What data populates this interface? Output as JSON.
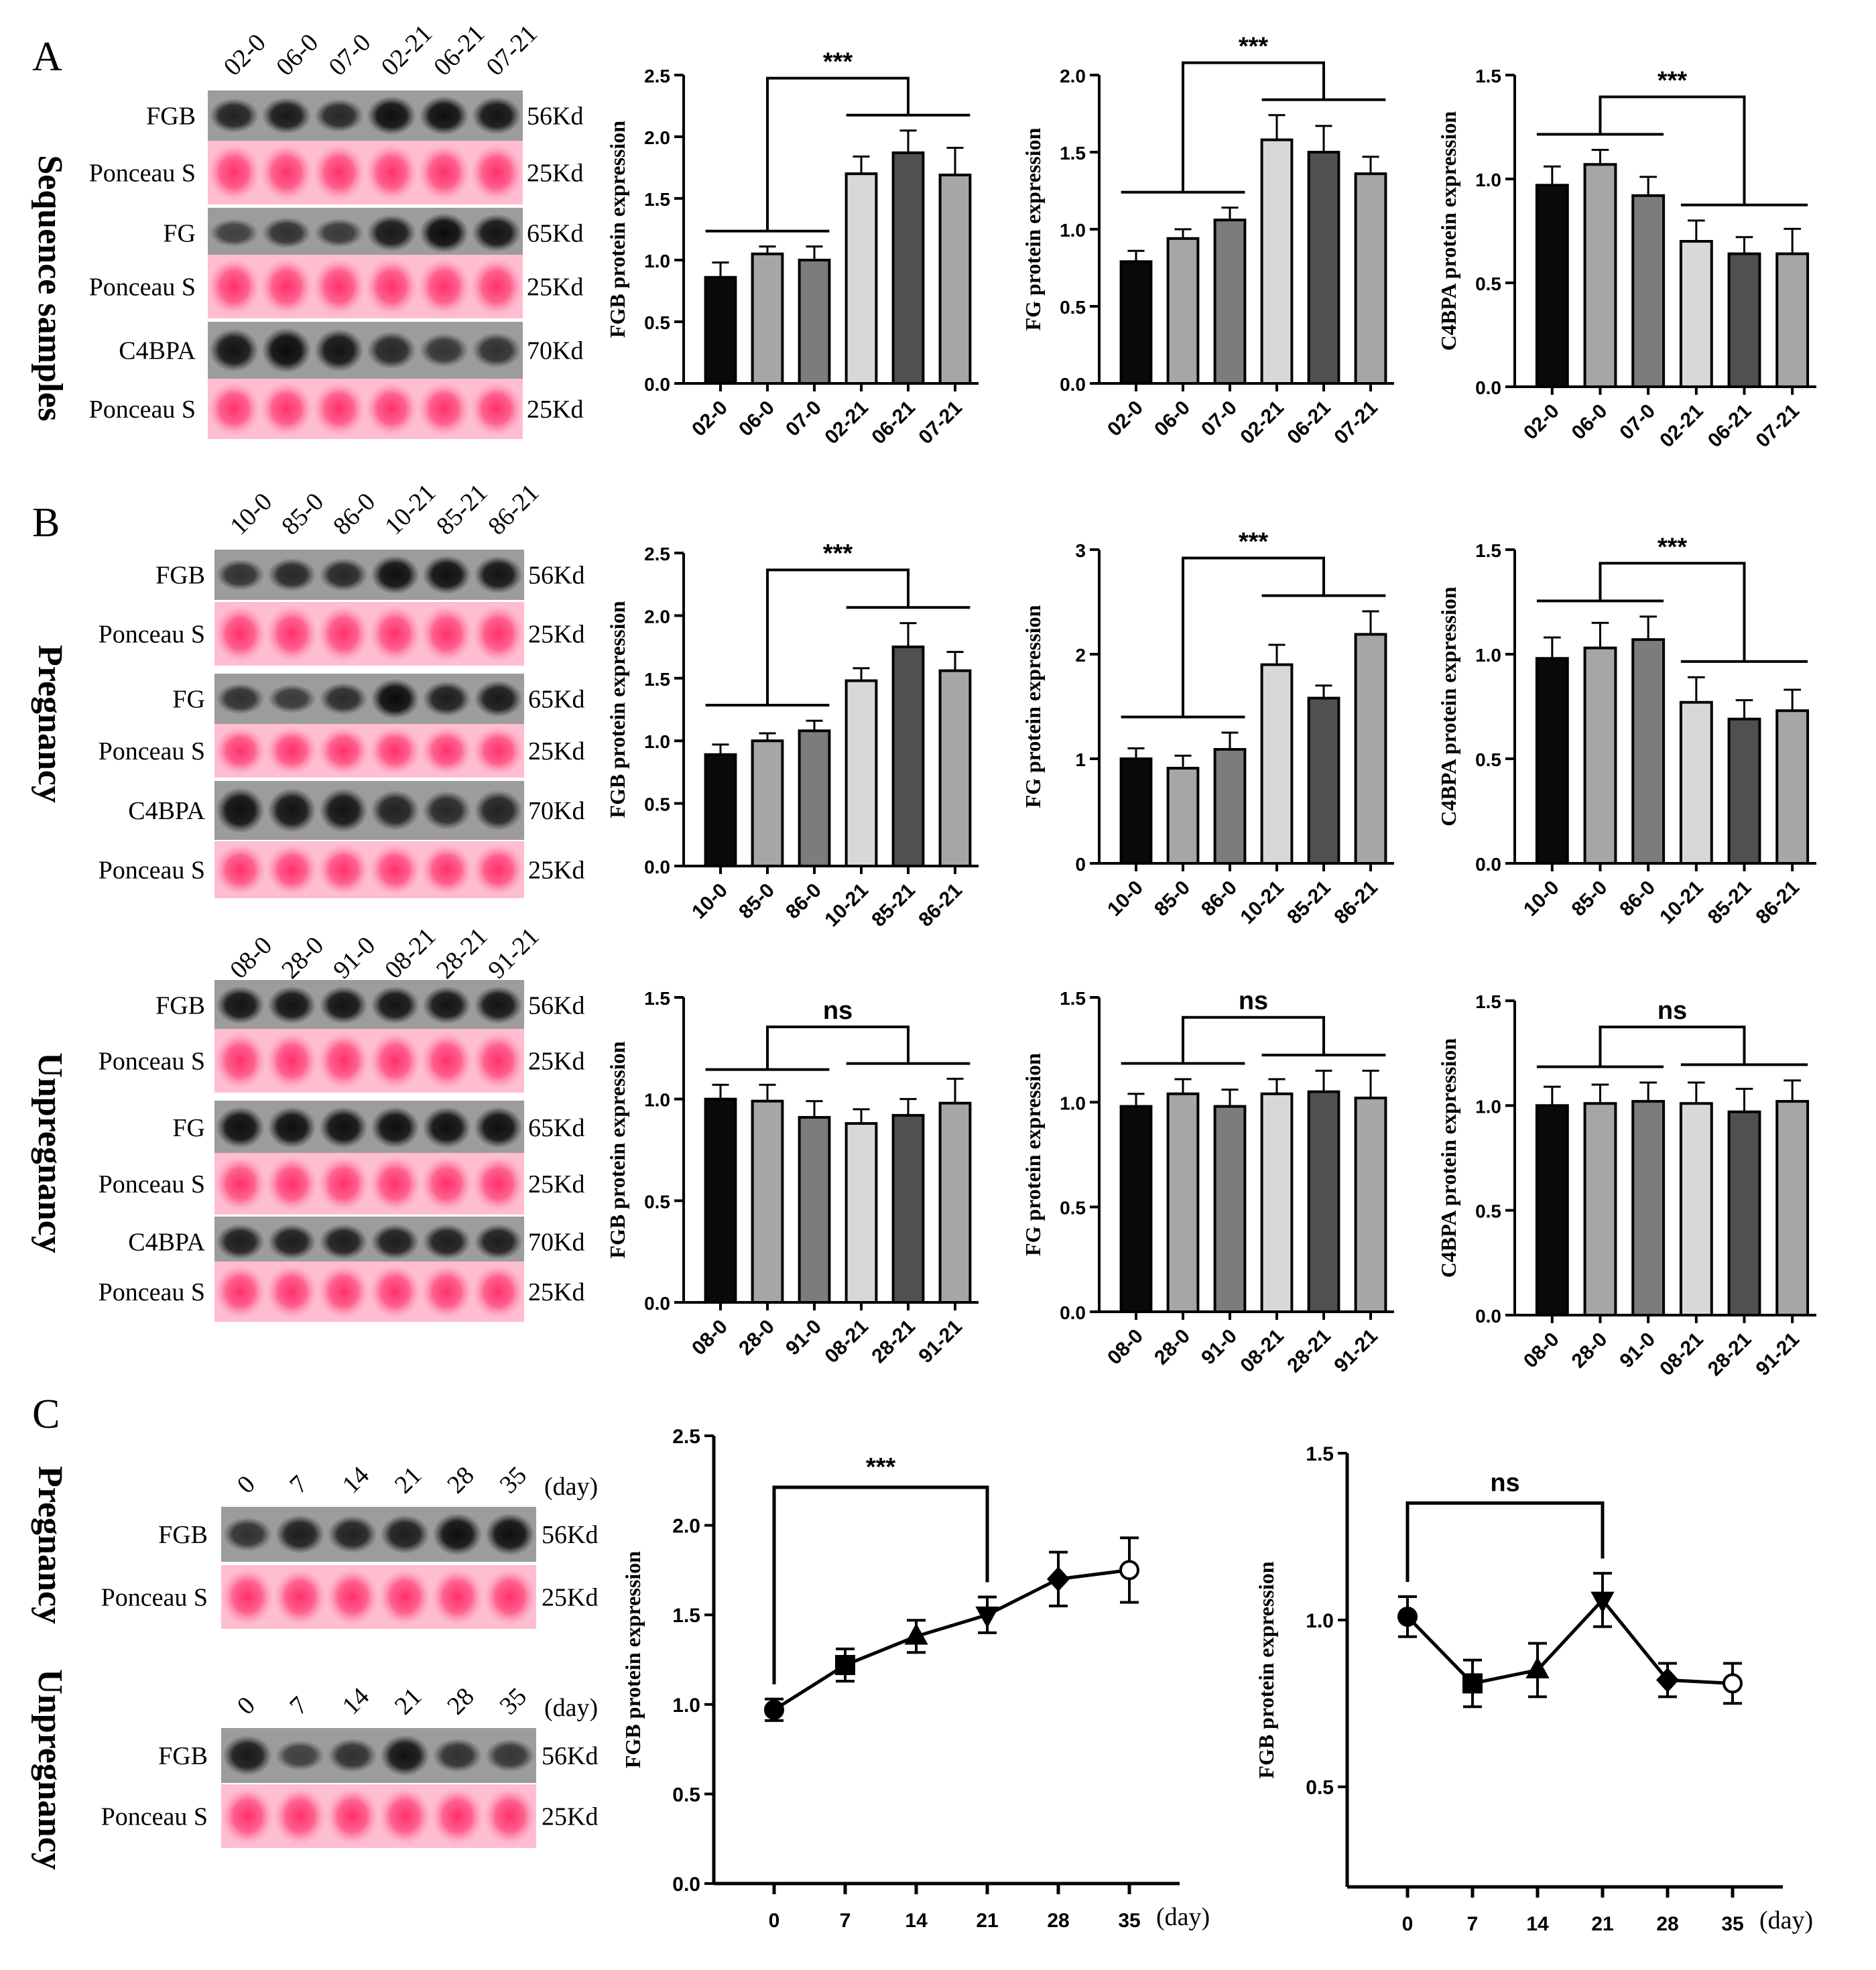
{
  "panels": [
    {
      "letter": "A"
    },
    {
      "letter": "B"
    },
    {
      "letter": "C"
    }
  ],
  "blots": [
    {
      "group_label": "Sequence samples",
      "lanes": [
        "02-0",
        "06-0",
        "07-0",
        "02-21",
        "06-21",
        "07-21"
      ],
      "rows": [
        {
          "label": "FGB",
          "kind": "band",
          "size": "56Kd",
          "intensity": [
            0.75,
            0.85,
            0.7,
            0.95,
            0.95,
            0.9
          ]
        },
        {
          "label": "Ponceau S",
          "kind": "ponceau",
          "size": "25Kd"
        },
        {
          "label": "FG",
          "kind": "band",
          "size": "65Kd",
          "intensity": [
            0.45,
            0.6,
            0.5,
            0.85,
            1.0,
            0.9
          ]
        },
        {
          "label": "Ponceau S",
          "kind": "ponceau",
          "size": "25Kd"
        },
        {
          "label": "C4BPA",
          "kind": "band",
          "size": "70Kd",
          "intensity": [
            0.9,
            1.0,
            0.9,
            0.7,
            0.55,
            0.6
          ]
        },
        {
          "label": "Ponceau S",
          "kind": "ponceau",
          "size": "25Kd"
        }
      ]
    },
    {
      "group_label": "Pregnancy",
      "lanes": [
        "10-0",
        "85-0",
        "86-0",
        "10-21",
        "85-21",
        "86-21"
      ],
      "rows": [
        {
          "label": "FGB",
          "kind": "band",
          "size": "56Kd",
          "intensity": [
            0.6,
            0.7,
            0.7,
            0.95,
            0.95,
            0.9
          ]
        },
        {
          "label": "Ponceau S",
          "kind": "ponceau",
          "size": "25Kd"
        },
        {
          "label": "FG",
          "kind": "band",
          "size": "65Kd",
          "intensity": [
            0.6,
            0.5,
            0.65,
            1.0,
            0.8,
            0.85
          ]
        },
        {
          "label": "Ponceau S",
          "kind": "ponceau",
          "size": "25Kd"
        },
        {
          "label": "C4BPA",
          "kind": "band",
          "size": "70Kd",
          "intensity": [
            0.95,
            0.9,
            0.9,
            0.75,
            0.7,
            0.75
          ]
        },
        {
          "label": "Ponceau S",
          "kind": "ponceau",
          "size": "25Kd"
        }
      ]
    },
    {
      "group_label": "Unpregnancy",
      "lanes": [
        "08-0",
        "28-0",
        "91-0",
        "08-21",
        "28-21",
        "91-21"
      ],
      "rows": [
        {
          "label": "FGB",
          "kind": "band",
          "size": "56Kd",
          "intensity": [
            0.9,
            0.9,
            0.9,
            0.9,
            0.9,
            0.9
          ]
        },
        {
          "label": "Ponceau S",
          "kind": "ponceau",
          "size": "25Kd"
        },
        {
          "label": "FG",
          "kind": "band",
          "size": "65Kd",
          "intensity": [
            0.95,
            0.95,
            0.95,
            0.95,
            0.95,
            0.95
          ]
        },
        {
          "label": "Ponceau S",
          "kind": "ponceau",
          "size": "25Kd"
        },
        {
          "label": "C4BPA",
          "kind": "band",
          "size": "70Kd",
          "intensity": [
            0.8,
            0.8,
            0.8,
            0.8,
            0.8,
            0.8
          ]
        },
        {
          "label": "Ponceau S",
          "kind": "ponceau",
          "size": "25Kd"
        }
      ]
    }
  ],
  "blots_c": [
    {
      "group_label": "Pregnancy",
      "lanes": [
        "0",
        "7",
        "14",
        "21",
        "28",
        "35"
      ],
      "day_label": "(day)",
      "rows": [
        {
          "label": "FGB",
          "kind": "band",
          "size": "56Kd",
          "intensity": [
            0.6,
            0.8,
            0.75,
            0.8,
            0.95,
            0.95
          ]
        },
        {
          "label": "Ponceau S",
          "kind": "ponceau",
          "size": "25Kd"
        }
      ]
    },
    {
      "group_label": "Unpregnancy",
      "lanes": [
        "0",
        "7",
        "14",
        "21",
        "28",
        "35"
      ],
      "day_label": "(day)",
      "rows": [
        {
          "label": "FGB",
          "kind": "band",
          "size": "56Kd",
          "intensity": [
            0.85,
            0.45,
            0.6,
            0.9,
            0.6,
            0.55
          ]
        },
        {
          "label": "Ponceau S",
          "kind": "ponceau",
          "size": "25Kd"
        }
      ]
    }
  ],
  "chart_data": [
    {
      "type": "bar",
      "id": "A1",
      "ylabel": "FGB protein expression",
      "categories": [
        "02-0",
        "06-0",
        "07-0",
        "02-21",
        "06-21",
        "07-21"
      ],
      "values": [
        0.86,
        1.05,
        1.0,
        1.7,
        1.87,
        1.69
      ],
      "errors": [
        0.12,
        0.06,
        0.11,
        0.14,
        0.18,
        0.22
      ],
      "ylim": [
        0,
        2.5
      ],
      "yticks": [
        0.0,
        0.5,
        1.0,
        1.5,
        2.0,
        2.5
      ],
      "significance": "***"
    },
    {
      "type": "bar",
      "id": "A2",
      "ylabel": "FG protein expression",
      "categories": [
        "02-0",
        "06-0",
        "07-0",
        "02-21",
        "06-21",
        "07-21"
      ],
      "values": [
        0.79,
        0.94,
        1.06,
        1.58,
        1.5,
        1.36
      ],
      "errors": [
        0.07,
        0.06,
        0.08,
        0.16,
        0.17,
        0.11
      ],
      "ylim": [
        0,
        2.0
      ],
      "yticks": [
        0.0,
        0.5,
        1.0,
        1.5,
        2.0
      ],
      "significance": "***"
    },
    {
      "type": "bar",
      "id": "A3",
      "ylabel": "C4BPA protein expression",
      "categories": [
        "02-0",
        "06-0",
        "07-0",
        "02-21",
        "06-21",
        "07-21"
      ],
      "values": [
        0.97,
        1.07,
        0.92,
        0.7,
        0.64,
        0.64
      ],
      "errors": [
        0.09,
        0.07,
        0.09,
        0.1,
        0.08,
        0.12
      ],
      "ylim": [
        0,
        1.5
      ],
      "yticks": [
        0.0,
        0.5,
        1.0,
        1.5
      ],
      "significance": "***"
    },
    {
      "type": "bar",
      "id": "B1",
      "ylabel": "FGB protein expression",
      "categories": [
        "10-0",
        "85-0",
        "86-0",
        "10-21",
        "85-21",
        "86-21"
      ],
      "values": [
        0.89,
        1.0,
        1.08,
        1.48,
        1.75,
        1.56
      ],
      "errors": [
        0.08,
        0.06,
        0.08,
        0.1,
        0.19,
        0.15
      ],
      "ylim": [
        0,
        2.5
      ],
      "yticks": [
        0.0,
        0.5,
        1.0,
        1.5,
        2.0,
        2.5
      ],
      "significance": "***"
    },
    {
      "type": "bar",
      "id": "B2",
      "ylabel": "FG protein expression",
      "categories": [
        "10-0",
        "85-0",
        "86-0",
        "10-21",
        "85-21",
        "86-21"
      ],
      "values": [
        1.0,
        0.91,
        1.09,
        1.9,
        1.58,
        2.19
      ],
      "errors": [
        0.1,
        0.12,
        0.16,
        0.19,
        0.12,
        0.22
      ],
      "ylim": [
        0,
        3
      ],
      "yticks": [
        0,
        1,
        2,
        3
      ],
      "significance": "***"
    },
    {
      "type": "bar",
      "id": "B3",
      "ylabel": "C4BPA protein expression",
      "categories": [
        "10-0",
        "85-0",
        "86-0",
        "10-21",
        "85-21",
        "86-21"
      ],
      "values": [
        0.98,
        1.03,
        1.07,
        0.77,
        0.69,
        0.73
      ],
      "errors": [
        0.1,
        0.12,
        0.11,
        0.12,
        0.09,
        0.1
      ],
      "ylim": [
        0,
        1.5
      ],
      "yticks": [
        0.0,
        0.5,
        1.0,
        1.5
      ],
      "significance": "***"
    },
    {
      "type": "bar",
      "id": "B4",
      "ylabel": "FGB protein expression",
      "categories": [
        "08-0",
        "28-0",
        "91-0",
        "08-21",
        "28-21",
        "91-21"
      ],
      "values": [
        1.0,
        0.99,
        0.91,
        0.88,
        0.92,
        0.98
      ],
      "errors": [
        0.07,
        0.08,
        0.08,
        0.07,
        0.08,
        0.12
      ],
      "ylim": [
        0,
        1.5
      ],
      "yticks": [
        0.0,
        0.5,
        1.0,
        1.5
      ],
      "significance": "ns"
    },
    {
      "type": "bar",
      "id": "B5",
      "ylabel": "FG protein expression",
      "categories": [
        "08-0",
        "28-0",
        "91-0",
        "08-21",
        "28-21",
        "91-21"
      ],
      "values": [
        0.98,
        1.04,
        0.98,
        1.04,
        1.05,
        1.02
      ],
      "errors": [
        0.06,
        0.07,
        0.08,
        0.07,
        0.1,
        0.13
      ],
      "ylim": [
        0,
        1.5
      ],
      "yticks": [
        0.0,
        0.5,
        1.0,
        1.5
      ],
      "significance": "ns"
    },
    {
      "type": "bar",
      "id": "B6",
      "ylabel": "C4BPA protein expression",
      "categories": [
        "08-0",
        "28-0",
        "91-0",
        "08-21",
        "28-21",
        "91-21"
      ],
      "values": [
        1.0,
        1.01,
        1.02,
        1.01,
        0.97,
        1.02
      ],
      "errors": [
        0.09,
        0.09,
        0.09,
        0.1,
        0.11,
        0.1
      ],
      "ylim": [
        0,
        1.5
      ],
      "yticks": [
        0.0,
        0.5,
        1.0,
        1.5
      ],
      "significance": "ns"
    },
    {
      "type": "line",
      "id": "C1",
      "ylabel": "FGB protein expression",
      "x": [
        0,
        7,
        14,
        21,
        28,
        35
      ],
      "xticks": [
        "0",
        "7",
        "14",
        "21",
        "28",
        "35"
      ],
      "xunit": "(day)",
      "values": [
        0.97,
        1.22,
        1.38,
        1.5,
        1.7,
        1.75
      ],
      "errors": [
        0.06,
        0.09,
        0.09,
        0.1,
        0.15,
        0.18
      ],
      "markers": [
        "circle",
        "square",
        "triangle-up",
        "triangle-down",
        "diamond",
        "circle-open"
      ],
      "ylim": [
        0,
        2.5
      ],
      "yticks": [
        0.0,
        0.5,
        1.0,
        1.5,
        2.0,
        2.5
      ],
      "significance": "***",
      "sig_from": 0,
      "sig_to": 21
    },
    {
      "type": "line",
      "id": "C2",
      "ylabel": "FGB protein expression",
      "x": [
        0,
        7,
        14,
        21,
        28,
        35
      ],
      "xticks": [
        "0",
        "7",
        "14",
        "21",
        "28",
        "35"
      ],
      "xunit": "(day)",
      "values": [
        1.01,
        0.81,
        0.85,
        1.06,
        0.82,
        0.81
      ],
      "errors": [
        0.06,
        0.07,
        0.08,
        0.08,
        0.05,
        0.06
      ],
      "markers": [
        "circle",
        "square",
        "triangle-up",
        "triangle-down",
        "diamond",
        "circle-open"
      ],
      "ylim": [
        0.2,
        1.5
      ],
      "yticks": [
        0.5,
        1.0,
        1.5
      ],
      "significance": "ns",
      "sig_from": 0,
      "sig_to": 21
    }
  ]
}
